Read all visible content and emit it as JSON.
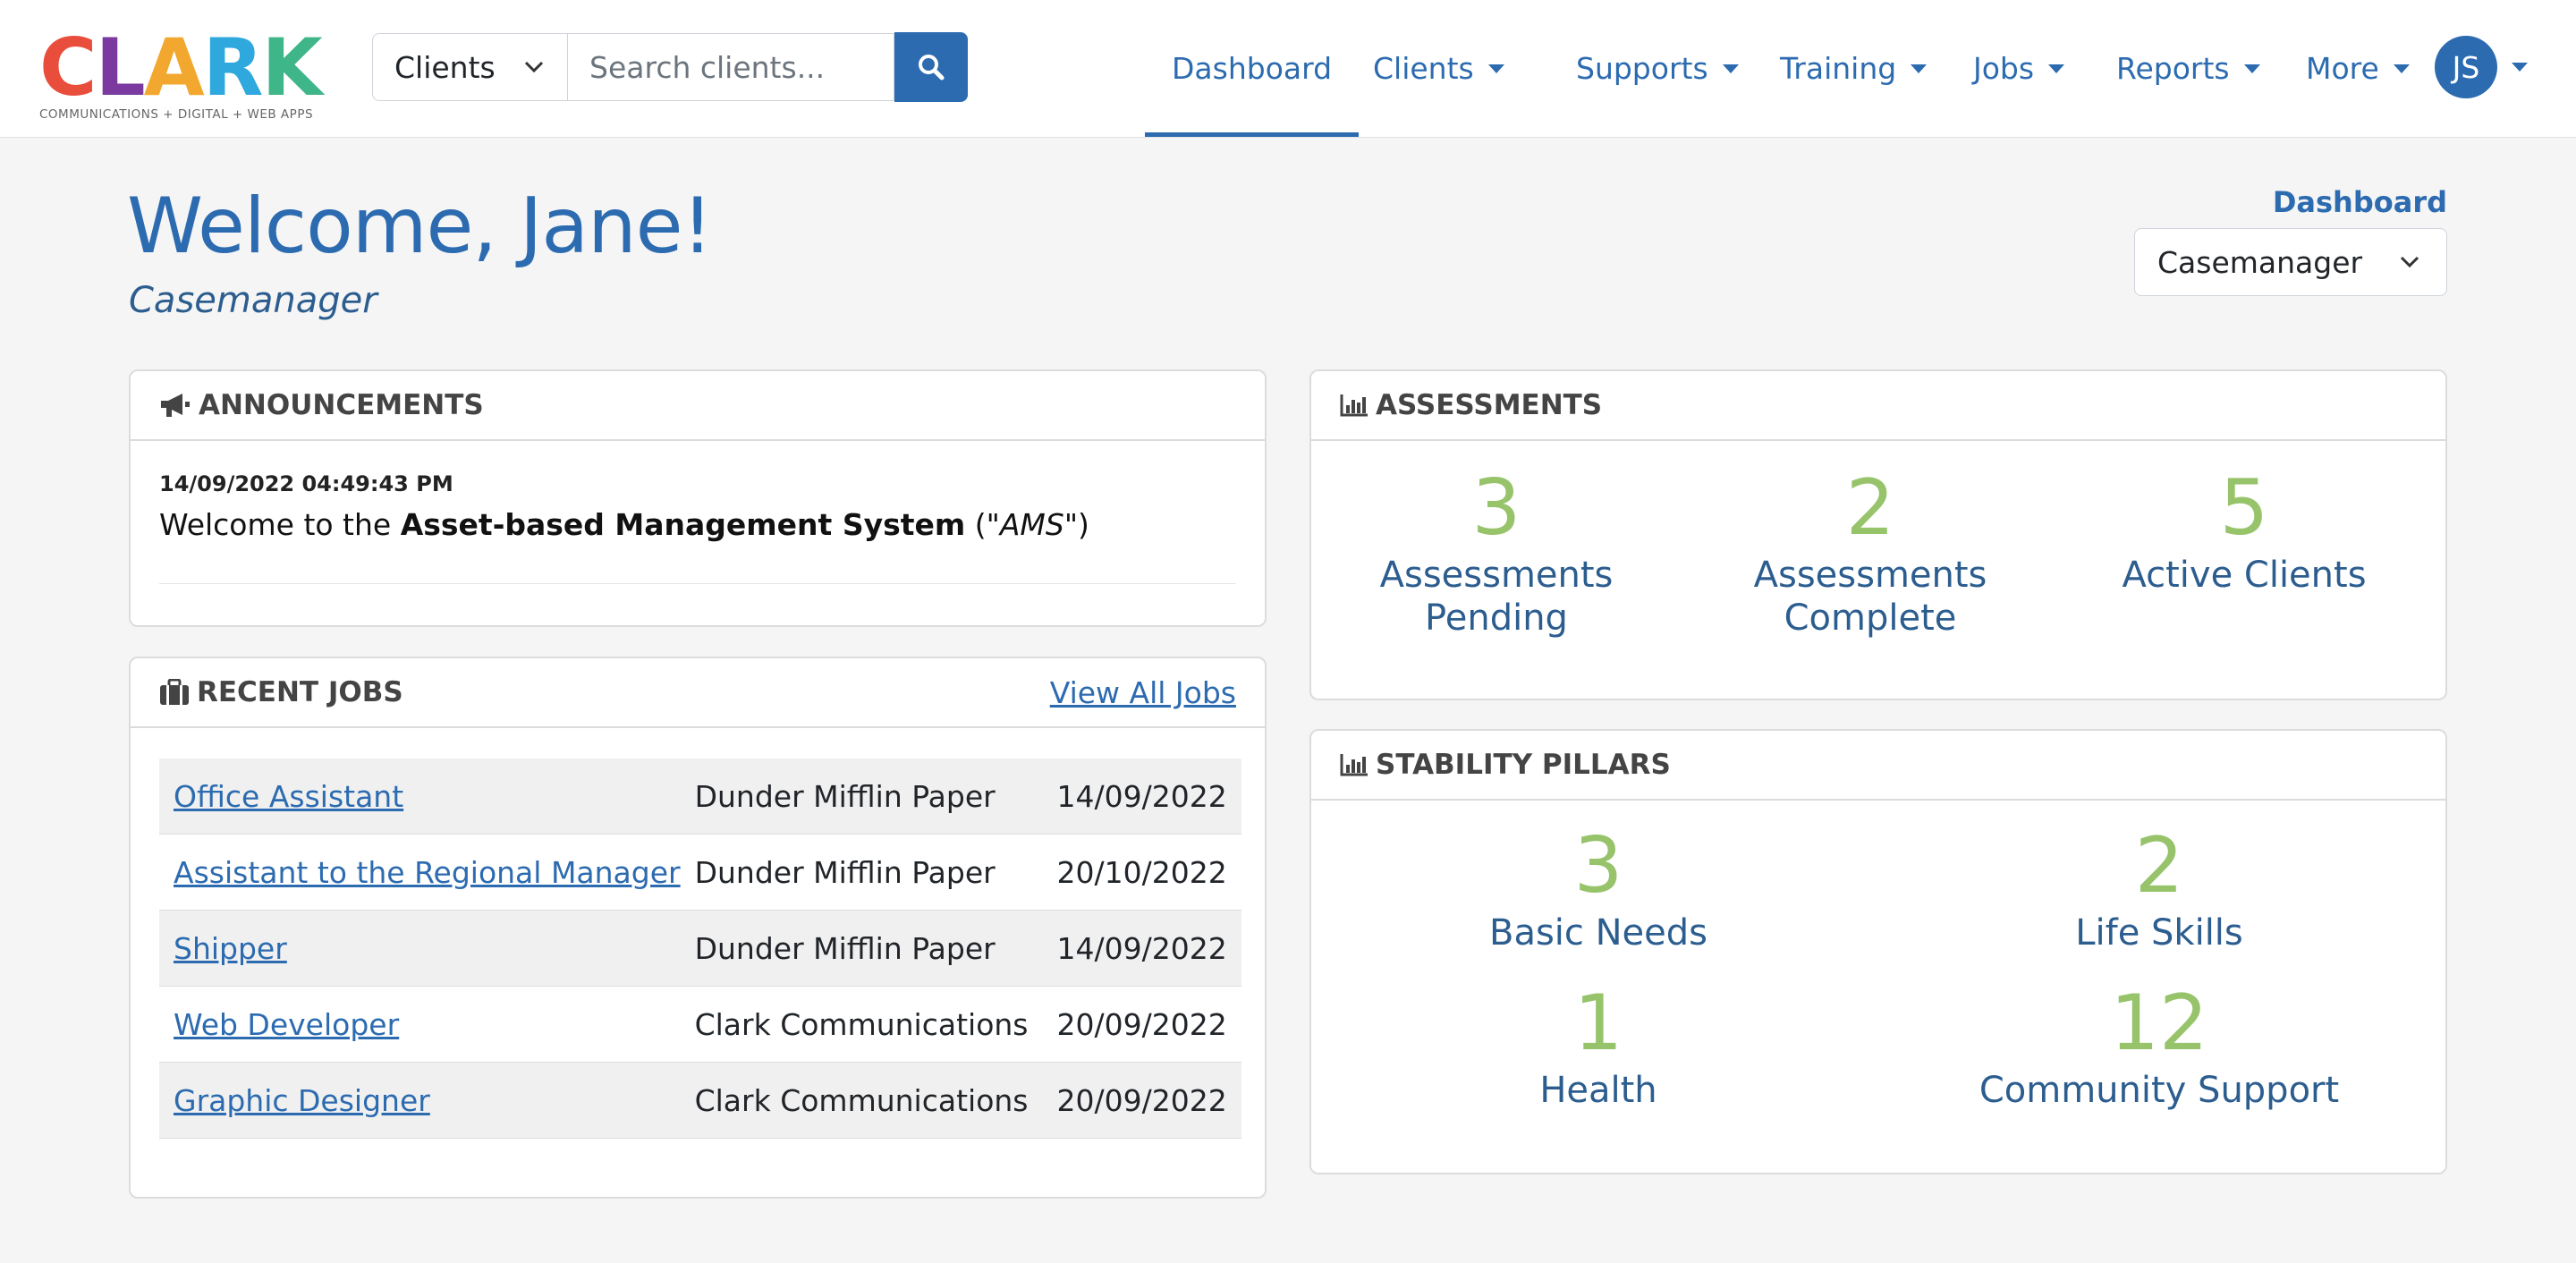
{
  "brand": {
    "letters": [
      "C",
      "L",
      "A",
      "R",
      "K"
    ],
    "colors": [
      "#e94e3c",
      "#6a3fa0",
      "#f2a72e",
      "#2ea8dd",
      "#3fb58a"
    ],
    "tagline": "COMMUNICATIONS + DIGITAL + WEB APPS"
  },
  "search": {
    "scope": "Clients",
    "placeholder": "Search clients..."
  },
  "nav": {
    "items": [
      {
        "label": "Dashboard",
        "active": true
      },
      {
        "label": "Clients"
      },
      {
        "label": "Supports"
      },
      {
        "label": "Training"
      },
      {
        "label": "Jobs"
      },
      {
        "label": "Reports"
      },
      {
        "label": "More"
      }
    ],
    "avatar_initials": "JS"
  },
  "header": {
    "welcome": "Welcome, Jane!",
    "role": "Casemanager",
    "dashboard_link": "Dashboard",
    "role_select": "Casemanager"
  },
  "announcements": {
    "title": "ANNOUNCEMENTS",
    "items": [
      {
        "time": "14/09/2022 04:49:43 PM",
        "prefix": "Welcome to the ",
        "bold": "Asset-based Management System",
        "mid": " (\"",
        "italic": "AMS",
        "suffix": "\")"
      }
    ]
  },
  "jobs": {
    "title": "RECENT JOBS",
    "view_all": "View All Jobs",
    "rows": [
      {
        "title": "Office Assistant",
        "company": "Dunder Mifflin Paper",
        "date": "14/09/2022"
      },
      {
        "title": "Assistant to the Regional Manager",
        "company": "Dunder Mifflin Paper",
        "date": "20/10/2022"
      },
      {
        "title": "Shipper",
        "company": "Dunder Mifflin Paper",
        "date": "14/09/2022"
      },
      {
        "title": "Web Developer",
        "company": "Clark Communications",
        "date": "20/09/2022"
      },
      {
        "title": "Graphic Designer",
        "company": "Clark Communications",
        "date": "20/09/2022"
      }
    ]
  },
  "assessments": {
    "title": "ASSESSMENTS",
    "stats": [
      {
        "value": "3",
        "line1": "Assessments",
        "line2": "Pending"
      },
      {
        "value": "2",
        "line1": "Assessments",
        "line2": "Complete"
      },
      {
        "value": "5",
        "line1": "Active Clients",
        "line2": ""
      }
    ]
  },
  "pillars": {
    "title": "STABILITY PILLARS",
    "stats": [
      {
        "value": "3",
        "label": "Basic Needs"
      },
      {
        "value": "2",
        "label": "Life Skills"
      },
      {
        "value": "1",
        "label": "Health"
      },
      {
        "value": "12",
        "label": "Community Support"
      }
    ]
  },
  "colors": {
    "primary": "#2c6bb0",
    "stat_green": "#97c36b",
    "stat_label": "#2c5d8f"
  }
}
